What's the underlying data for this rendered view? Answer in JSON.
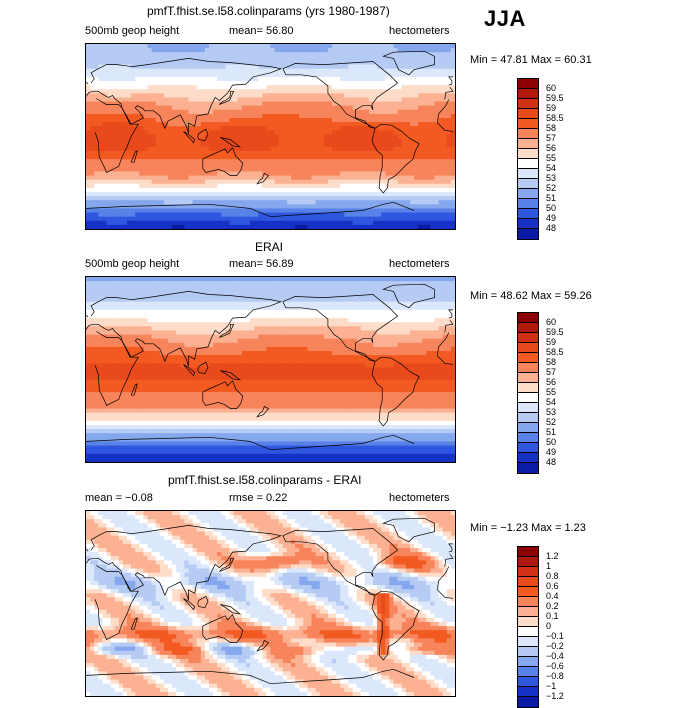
{
  "season": "JJA",
  "panels": [
    {
      "title": "pmfT.fhist.se.l58.colinparams (yrs 1980-1987)",
      "left_label": "500mb geop height",
      "center_label": "mean=  56.80",
      "right_label": "hectometers",
      "min_max": "Min =  47.81 Max =  60.31",
      "field": "abs",
      "contour_levels": [
        "60",
        "59.5",
        "59",
        "58.5",
        "58",
        "57",
        "56",
        "55",
        "54",
        "53",
        "52",
        "51",
        "50",
        "49",
        "48"
      ],
      "colors": [
        "#8b0000",
        "#b0190a",
        "#d23014",
        "#e84a1c",
        "#f25a22",
        "#f7845a",
        "#fbb192",
        "#fdddc9",
        "#ffffff",
        "#dbe7fa",
        "#b5cbf3",
        "#85a7ee",
        "#5982e8",
        "#2f56de",
        "#1532c4",
        "#0a1ca6"
      ]
    },
    {
      "title": "ERAI",
      "left_label": "500mb geop height",
      "center_label": "mean=  56.89",
      "right_label": "hectometers",
      "min_max": "Min =  48.62 Max =  59.26",
      "field": "abs",
      "contour_levels": [
        "60",
        "59.5",
        "59",
        "58.5",
        "58",
        "57",
        "56",
        "55",
        "54",
        "53",
        "52",
        "51",
        "50",
        "49",
        "48"
      ],
      "colors": [
        "#8b0000",
        "#b0190a",
        "#d23014",
        "#e84a1c",
        "#f25a22",
        "#f7845a",
        "#fbb192",
        "#fdddc9",
        "#ffffff",
        "#dbe7fa",
        "#b5cbf3",
        "#85a7ee",
        "#5982e8",
        "#2f56de",
        "#1532c4",
        "#0a1ca6"
      ]
    },
    {
      "title": "pmfT.fhist.se.l58.colinparams - ERAI",
      "left_label": "mean =  −0.08",
      "center_label": "rmse =    0.22",
      "right_label": "hectometers",
      "min_max": "Min = −1.23 Max =    1.23",
      "field": "diff",
      "contour_levels": [
        "1.2",
        "1",
        "0.8",
        "0.6",
        "0.4",
        "0.2",
        "0.1",
        "0",
        "−0.1",
        "−0.2",
        "−0.4",
        "−0.6",
        "−0.8",
        "−1",
        "−1.2"
      ],
      "colors": [
        "#8b0000",
        "#b0190a",
        "#d23014",
        "#e84a1c",
        "#f25a22",
        "#f7845a",
        "#fbb192",
        "#fdddc9",
        "#ffffff",
        "#dbe7fa",
        "#b5cbf3",
        "#85a7ee",
        "#5982e8",
        "#2f56de",
        "#1532c4",
        "#0a1ca6"
      ]
    }
  ]
}
